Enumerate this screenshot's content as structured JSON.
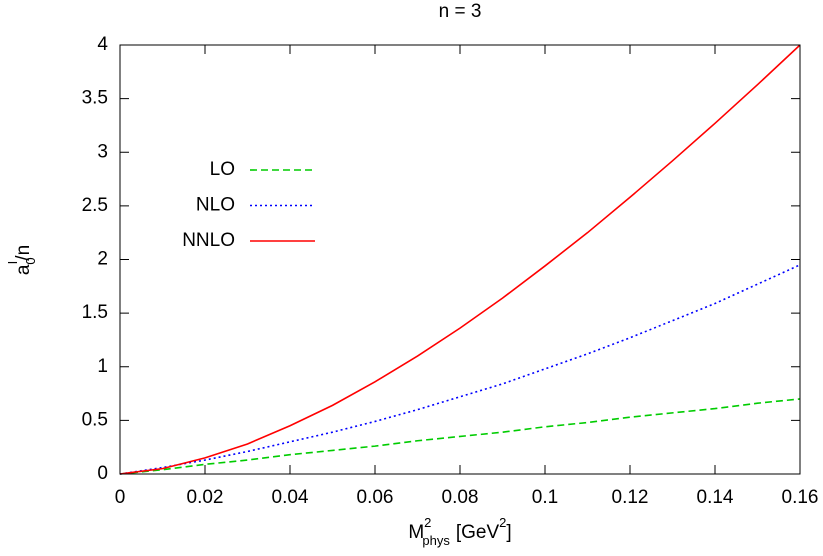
{
  "chart_data": {
    "type": "line",
    "title": "n = 3",
    "ylabel": {
      "base": "a",
      "sub": "0",
      "sup": "I",
      "rest": "/n"
    },
    "xlabel": {
      "base": "M",
      "sup": "2",
      "sub": "phys",
      "rest": "[GeV",
      "unit_sup": "2",
      "close": "]"
    },
    "x": [
      0,
      0.01,
      0.02,
      0.03,
      0.04,
      0.05,
      0.06,
      0.07,
      0.08,
      0.09,
      0.1,
      0.11,
      0.12,
      0.13,
      0.14,
      0.15,
      0.16
    ],
    "series": [
      {
        "name": "LO",
        "color": "#00cc00",
        "dash": "dashed",
        "values": [
          0,
          0.04,
          0.09,
          0.13,
          0.18,
          0.22,
          0.26,
          0.31,
          0.35,
          0.39,
          0.44,
          0.48,
          0.53,
          0.57,
          0.61,
          0.66,
          0.7
        ]
      },
      {
        "name": "NLO",
        "color": "#0000ff",
        "dash": "dotted",
        "values": [
          0,
          0.06,
          0.13,
          0.21,
          0.3,
          0.39,
          0.49,
          0.6,
          0.72,
          0.84,
          0.98,
          1.12,
          1.27,
          1.43,
          1.59,
          1.77,
          1.95
        ]
      },
      {
        "name": "NNLO",
        "color": "#ff0000",
        "dash": "solid",
        "values": [
          0,
          0.05,
          0.15,
          0.28,
          0.45,
          0.64,
          0.86,
          1.1,
          1.36,
          1.64,
          1.94,
          2.25,
          2.58,
          2.92,
          3.27,
          3.63,
          4.0
        ]
      }
    ],
    "xlim": [
      0,
      0.16
    ],
    "ylim": [
      0,
      4
    ],
    "xticks": [
      0,
      0.02,
      0.04,
      0.06,
      0.08,
      0.1,
      0.12,
      0.14,
      0.16
    ],
    "yticks": [
      0,
      0.5,
      1,
      1.5,
      2,
      2.5,
      3,
      3.5,
      4
    ],
    "legend": "top-left"
  }
}
